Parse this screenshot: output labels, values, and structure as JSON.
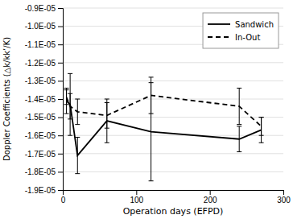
{
  "chart_data": {
    "type": "line",
    "title": "",
    "xlabel": "Operation days (EFPD)",
    "ylabel": "Doppler Coefficients (△k/kk’/K)",
    "x": [
      5,
      10,
      20,
      60,
      120,
      240,
      270
    ],
    "series": [
      {
        "name": "Sandwich",
        "color": "black",
        "line_style": "solid",
        "values": [
          -1.41e-05,
          -1.43e-05,
          -1.71e-05,
          -1.52e-05,
          -1.58e-05,
          -1.62e-05,
          -1.57e-05
        ],
        "errors": [
          7e-07,
          1.7e-06,
          1e-06,
          1.2e-06,
          2.7e-06,
          7e-07,
          7e-07
        ]
      },
      {
        "name": "In-Out",
        "color": "black",
        "line_style": "dashed",
        "values": [
          -1.39e-05,
          -1.44e-05,
          -1.47e-05,
          -1.49e-05,
          -1.38e-05,
          -1.44e-05,
          -1.55e-05
        ],
        "errors": [
          4e-07,
          7e-07,
          7e-07,
          7e-07,
          1e-06,
          1e-06,
          5e-07
        ]
      }
    ],
    "xlim": [
      0,
      300
    ],
    "xticks": [
      0,
      100,
      200,
      300
    ],
    "ylim": [
      -1.9e-05,
      -9e-06
    ],
    "yticks": [
      {
        "value": -1.9e-05,
        "label": "-1.9E-05"
      },
      {
        "value": -1.8e-05,
        "label": "-1.8E-05"
      },
      {
        "value": -1.7e-05,
        "label": "-1.7E-05"
      },
      {
        "value": -1.6e-05,
        "label": "-1.6E-05"
      },
      {
        "value": -1.5e-05,
        "label": "-1.5E-05"
      },
      {
        "value": -1.4e-05,
        "label": "-1.4E-05"
      },
      {
        "value": -1.3e-05,
        "label": "-1.3E-05"
      },
      {
        "value": -1.2e-05,
        "label": "-1.2E-05"
      },
      {
        "value": -1.1e-05,
        "label": "-1.1E-05"
      },
      {
        "value": -1e-05,
        "label": "-1.0E-05"
      },
      {
        "value": -9e-06,
        "label": "-0.9E-05"
      }
    ],
    "grid": "y",
    "legend": "upper right"
  }
}
